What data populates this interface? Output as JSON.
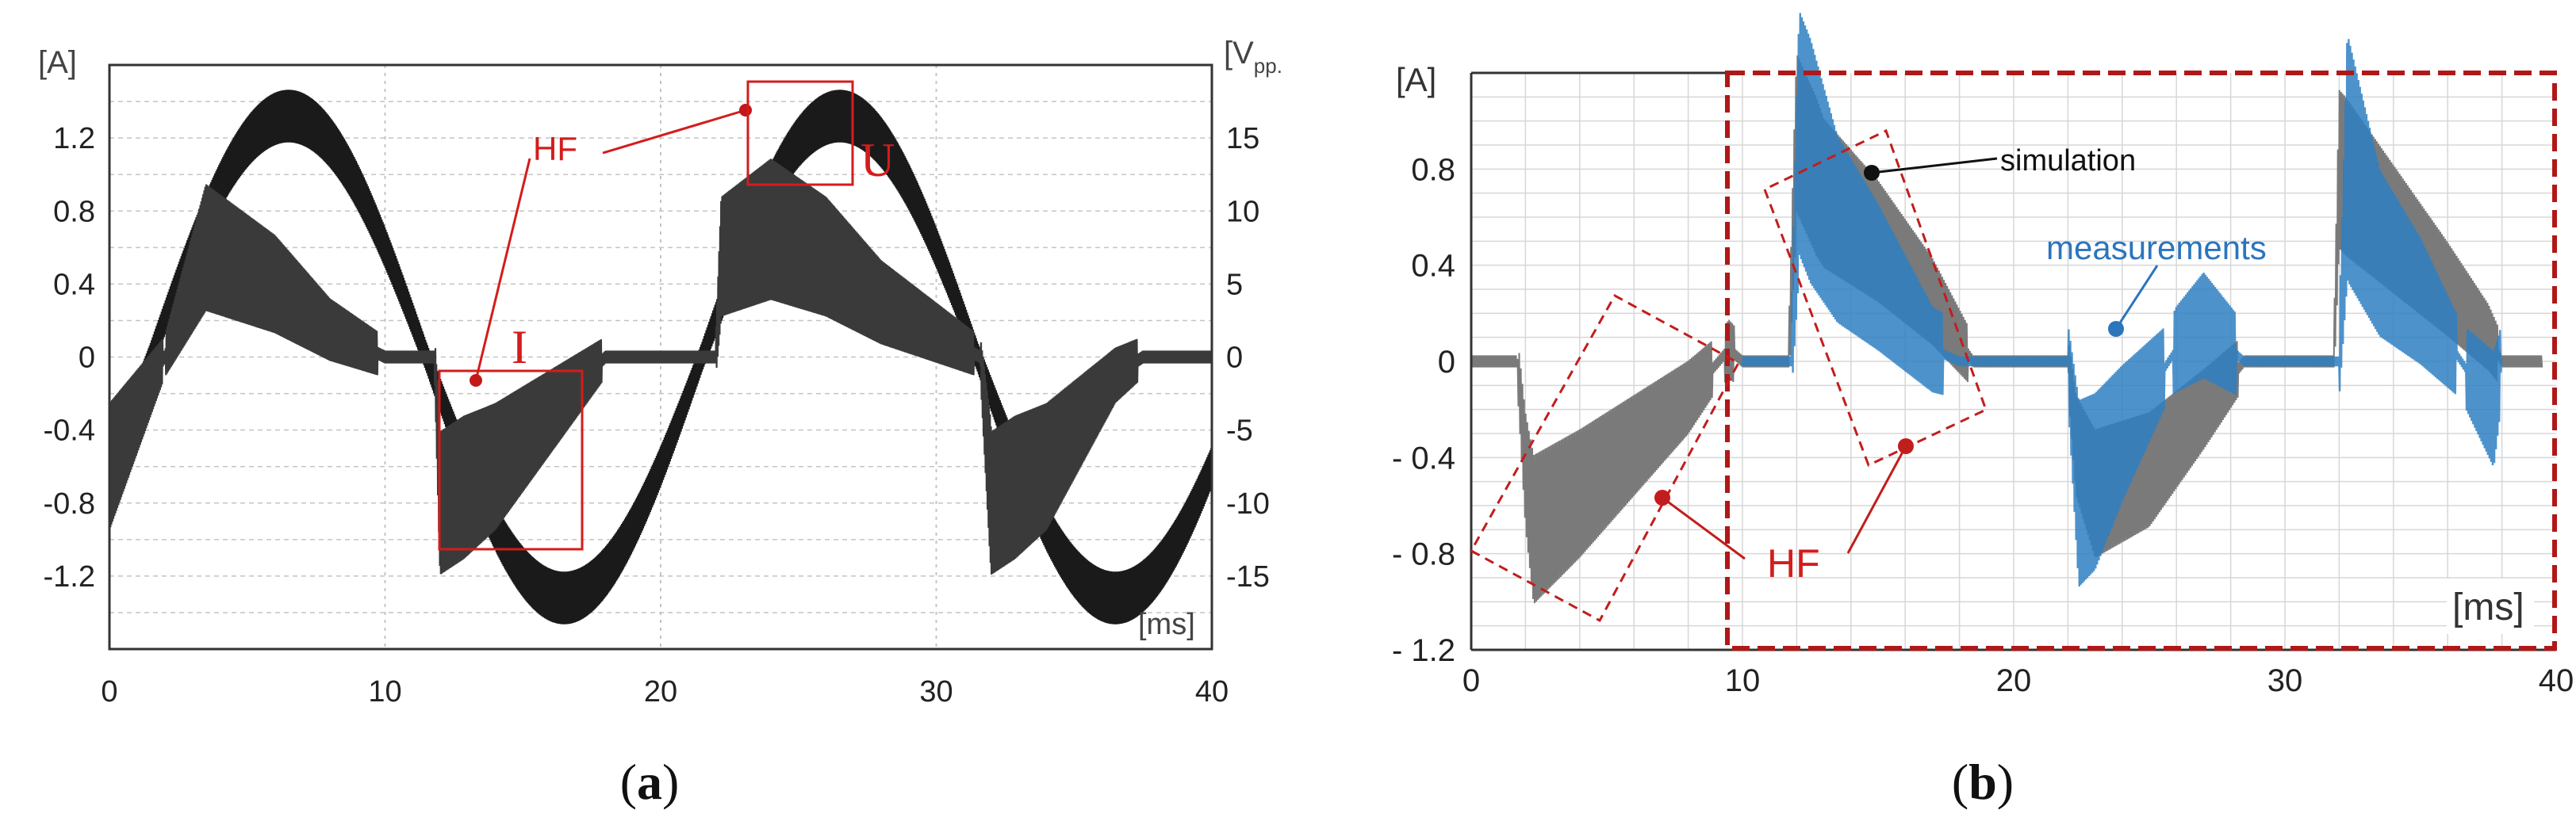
{
  "colors": {
    "trace_a": "#1a1a1a",
    "sim": "#7a7a7a",
    "meas": "#2e7fc2",
    "meas_light": "#7fb2de",
    "annot": "#d41c1c",
    "grid": "#c4c4c4",
    "text": "#222222",
    "label_blue": "#2b75bd"
  },
  "chart_data": [
    {
      "id": "a",
      "type": "line",
      "panel_label": "a",
      "xlabel": "[ms]",
      "ylabel_left": "[A]",
      "ylabel_right": "[V",
      "ylabel_right_sub": "pp.",
      "xlim": [
        0,
        40
      ],
      "ylim": [
        -1.6,
        1.6
      ],
      "ylim_right": [
        -20,
        20
      ],
      "x_ticks": [
        "0",
        "10",
        "20",
        "30",
        "40"
      ],
      "y_ticks": [
        "1.2",
        "0.8",
        "0.4",
        "0",
        "-0.4",
        "-0.8",
        "-1.2"
      ],
      "y_ticks_right": [
        "15",
        "10",
        "5",
        "0",
        "-5",
        "-10",
        "-15"
      ],
      "series": [
        {
          "name": "U (voltage, 50 Hz sine with HF ripple)",
          "axis": "right",
          "amplitude_v": 16.5,
          "period_ms": 20,
          "hf_ripple_v": 1.8
        },
        {
          "name": "I (current)",
          "axis": "left",
          "points": [
            [
              0,
              -0.6
            ],
            [
              2,
              0
            ],
            [
              3.5,
              0.6
            ],
            [
              6,
              0.4
            ],
            [
              8,
              0.15
            ],
            [
              10,
              0
            ],
            [
              11.8,
              0
            ],
            [
              12,
              -0.8
            ],
            [
              14,
              -0.6
            ],
            [
              17,
              -0.15
            ],
            [
              18,
              0
            ],
            [
              22,
              0
            ],
            [
              22.2,
              0.55
            ],
            [
              24,
              0.7
            ],
            [
              26,
              0.55
            ],
            [
              28,
              0.3
            ],
            [
              31.6,
              0
            ],
            [
              32,
              -0.8
            ],
            [
              34,
              -0.6
            ],
            [
              36.5,
              -0.1
            ],
            [
              37.5,
              0
            ],
            [
              40,
              0
            ]
          ],
          "hf_ripple_a": 0.28
        }
      ],
      "annotations": [
        {
          "text": "HF",
          "color": "red"
        },
        {
          "text": "I",
          "color": "red",
          "box": [
            [
              12,
              -0.1
            ],
            [
              17.3,
              -1.05
            ]
          ]
        },
        {
          "text": "U",
          "color": "red",
          "box": [
            [
              23.2,
              1.5
            ],
            [
              27,
              0.95
            ]
          ]
        }
      ]
    },
    {
      "id": "b",
      "type": "line",
      "panel_label": "b",
      "xlabel": "[ms]",
      "ylabel_left": "[A]",
      "xlim": [
        0,
        40
      ],
      "ylim": [
        -1.2,
        1.2
      ],
      "x_ticks": [
        "0",
        "10",
        "20",
        "30",
        "40"
      ],
      "y_ticks": [
        "0.8",
        "0.4",
        "0",
        "- 0.4",
        "- 0.8",
        "- 1.2"
      ],
      "series": [
        {
          "name": "simulation",
          "points": [
            [
              0,
              0
            ],
            [
              1.7,
              0
            ],
            [
              2,
              -0.45
            ],
            [
              2.3,
              -0.7
            ],
            [
              4,
              -0.55
            ],
            [
              6,
              -0.35
            ],
            [
              8,
              -0.15
            ],
            [
              9.5,
              0.05
            ],
            [
              10,
              0
            ],
            [
              11.7,
              0
            ],
            [
              12,
              0.95
            ],
            [
              13,
              0.7
            ],
            [
              15,
              0.5
            ],
            [
              17,
              0.25
            ],
            [
              18.5,
              0
            ],
            [
              22,
              0
            ],
            [
              22.3,
              -0.35
            ],
            [
              23,
              -0.55
            ],
            [
              25,
              -0.45
            ],
            [
              27,
              -0.2
            ],
            [
              28.5,
              0
            ],
            [
              31.8,
              0
            ],
            [
              32,
              0.8
            ],
            [
              34,
              0.55
            ],
            [
              36,
              0.3
            ],
            [
              37.5,
              0.1
            ],
            [
              38,
              0
            ],
            [
              40,
              0
            ]
          ],
          "hf_ripple_a": 0.22
        },
        {
          "name": "measurements",
          "points": [
            [
              10,
              0
            ],
            [
              11.8,
              0
            ],
            [
              12.1,
              0.95
            ],
            [
              13.5,
              0.55
            ],
            [
              15,
              0.35
            ],
            [
              17,
              0.05
            ],
            [
              18,
              0
            ],
            [
              22,
              0
            ],
            [
              22.4,
              -0.55
            ],
            [
              23,
              -0.5
            ],
            [
              24,
              -0.3
            ],
            [
              26,
              0.05
            ],
            [
              27,
              0.15
            ],
            [
              28.5,
              0
            ],
            [
              32,
              0
            ],
            [
              32.3,
              0.85
            ],
            [
              33.5,
              0.45
            ],
            [
              35,
              0.25
            ],
            [
              36.5,
              0
            ],
            [
              37.7,
              -0.2
            ],
            [
              38,
              0
            ]
          ],
          "hf_ripple_a": 0.35
        }
      ],
      "annotations": [
        {
          "text": "simulation",
          "color": "black"
        },
        {
          "text": "measurements",
          "color": "blue"
        },
        {
          "text": "HF",
          "color": "red"
        },
        {
          "text": "ms",
          "color": "black"
        }
      ]
    }
  ]
}
